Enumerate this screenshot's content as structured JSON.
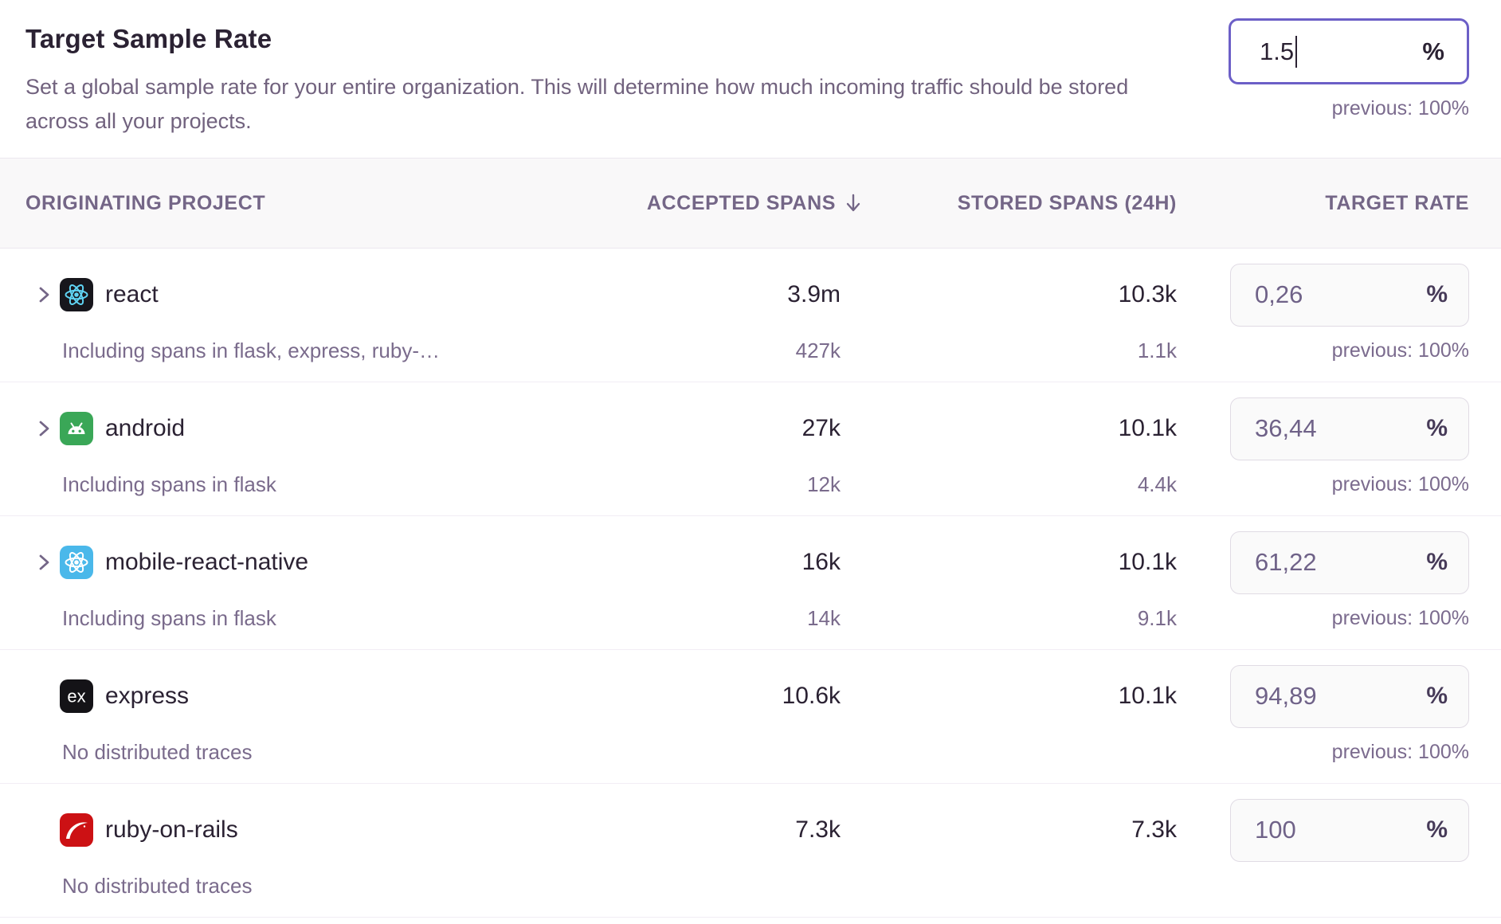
{
  "header": {
    "title": "Target Sample Rate",
    "description": "Set a global sample rate for your entire organization. This will determine how much incoming traffic should be stored across all your projects.",
    "input": {
      "value": "1.5",
      "suffix": "%"
    },
    "previous": "previous: 100%"
  },
  "table": {
    "percent": "%",
    "columns": {
      "project": "ORIGINATING PROJECT",
      "accepted": "ACCEPTED SPANS",
      "accepted_sort_icon": "arrow-down-icon",
      "stored": "STORED SPANS (24H)",
      "rate": "TARGET RATE"
    },
    "rows": [
      {
        "name": "react",
        "icon": "react-icon",
        "expandable": true,
        "accepted": "3.9m",
        "stored": "10.3k",
        "rate": "0,26",
        "sub": {
          "label": "Including spans in flask, express, ruby-…",
          "accepted": "427k",
          "stored": "1.1k",
          "previous": "previous: 100%"
        }
      },
      {
        "name": "android",
        "icon": "android-icon",
        "expandable": true,
        "accepted": "27k",
        "stored": "10.1k",
        "rate": "36,44",
        "sub": {
          "label": "Including spans in flask",
          "accepted": "12k",
          "stored": "4.4k",
          "previous": "previous: 100%"
        }
      },
      {
        "name": "mobile-react-native",
        "icon": "react-native-icon",
        "expandable": true,
        "accepted": "16k",
        "stored": "10.1k",
        "rate": "61,22",
        "sub": {
          "label": "Including spans in flask",
          "accepted": "14k",
          "stored": "9.1k",
          "previous": "previous: 100%"
        }
      },
      {
        "name": "express",
        "icon": "express-icon",
        "expandable": false,
        "accepted": "10.6k",
        "stored": "10.1k",
        "rate": "94,89",
        "sub": {
          "label": "No distributed traces",
          "previous": "previous: 100%"
        }
      },
      {
        "name": "ruby-on-rails",
        "icon": "ruby-on-rails-icon",
        "expandable": false,
        "accepted": "7.3k",
        "stored": "7.3k",
        "rate": "100",
        "sub": {
          "label": "No distributed traces"
        }
      }
    ]
  },
  "colors": {
    "accent_focus_border": "#6c5fc7",
    "heading_text": "#2b2233",
    "muted_text": "#71627e",
    "table_header_bg": "#f9f8f9",
    "rate_box_bg": "#fafafa",
    "rate_box_border": "#e0dbe4",
    "react_icon_bg": "#17161c",
    "react_icon_logo": "#5fd4f4",
    "android_icon_bg": "#3aa757",
    "react_native_icon_bg": "#4ab8ea",
    "express_icon_bg": "#141317",
    "rails_icon_bg": "#cc1114"
  }
}
